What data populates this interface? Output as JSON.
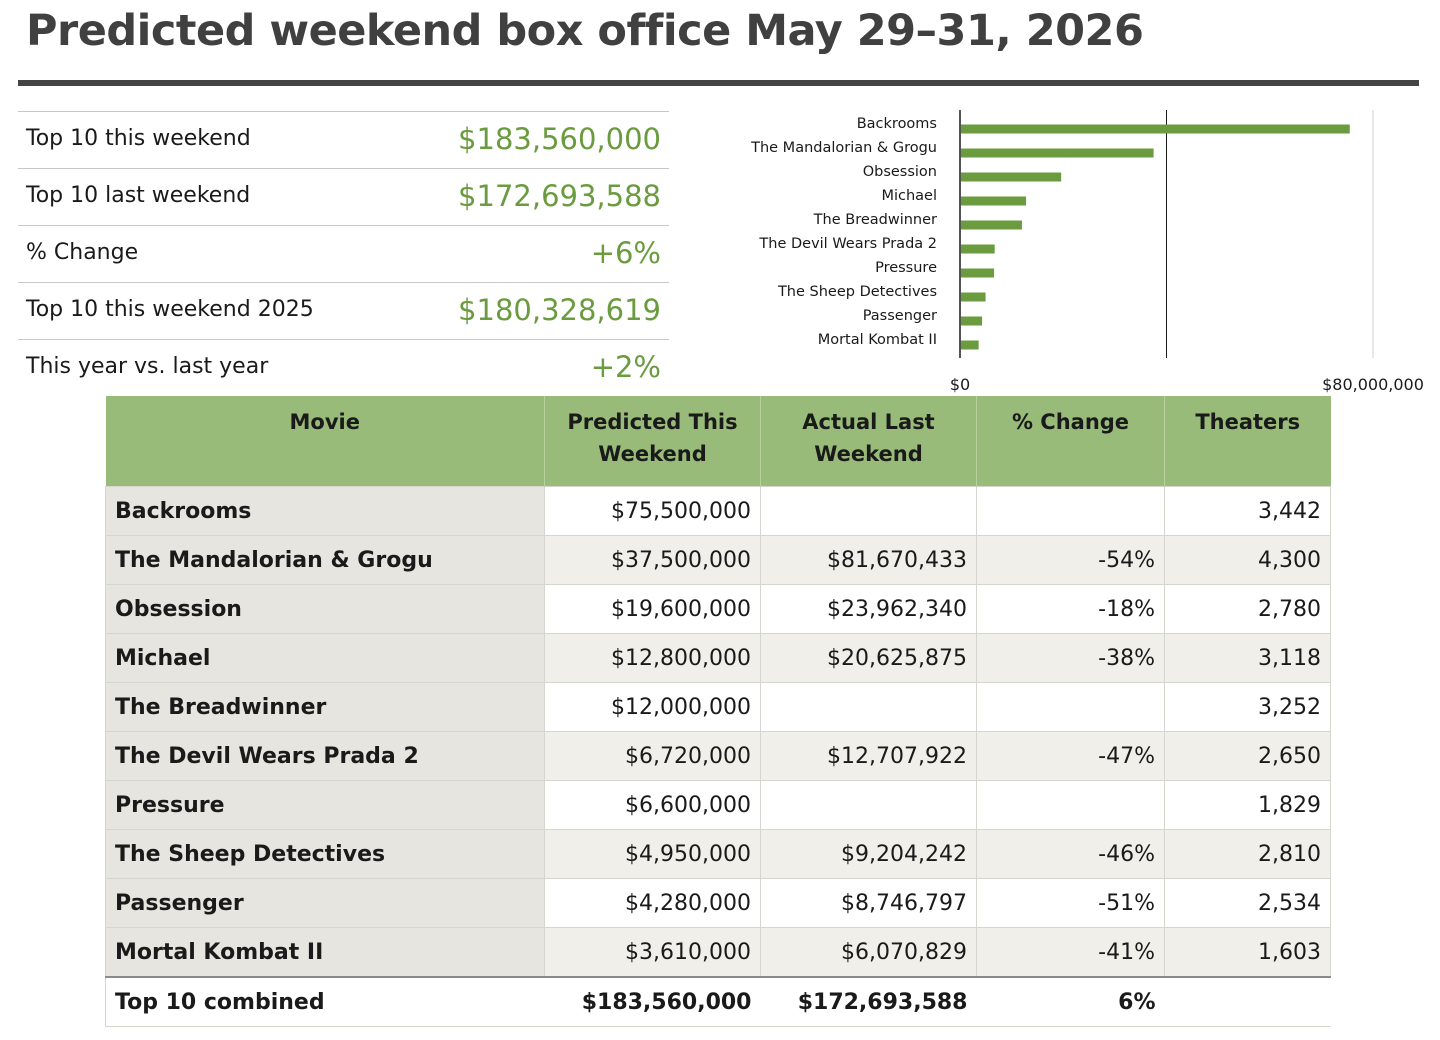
{
  "title": "Predicted weekend box office May 29–31, 2026",
  "summary": [
    {
      "label": "Top 10 this weekend",
      "value": "$183,560,000"
    },
    {
      "label": "Top 10 last weekend",
      "value": "$172,693,588"
    },
    {
      "label": "% Change",
      "value": "+6%"
    },
    {
      "label": "Top 10 this weekend 2025",
      "value": "$180,328,619"
    },
    {
      "label": "This year vs. last year",
      "value": "+2%"
    }
  ],
  "chart_data": {
    "type": "bar",
    "orientation": "horizontal",
    "categories": [
      "Backrooms",
      "The Mandalorian & Grogu",
      "Obsession",
      "Michael",
      "The Breadwinner",
      "The Devil Wears Prada 2",
      "Pressure",
      "The Sheep Detectives",
      "Passenger",
      "Mortal Kombat II"
    ],
    "values": [
      75500000,
      37500000,
      19600000,
      12800000,
      12000000,
      6720000,
      6600000,
      4950000,
      4280000,
      3610000
    ],
    "xlim": [
      0,
      80000000
    ],
    "x_tick_labels": [
      "$0",
      "$80,000,000"
    ],
    "gridlines": [
      40000000,
      80000000
    ],
    "bar_color": "#6b9b3f"
  },
  "table": {
    "headers": [
      "Movie",
      "Predicted This Weekend",
      "Actual Last Weekend",
      "% Change",
      "Theaters"
    ],
    "rows": [
      {
        "movie": "Backrooms",
        "predicted": "$75,500,000",
        "last": "",
        "change": "",
        "theaters": "3,442"
      },
      {
        "movie": "The Mandalorian & Grogu",
        "predicted": "$37,500,000",
        "last": "$81,670,433",
        "change": "-54%",
        "theaters": "4,300"
      },
      {
        "movie": "Obsession",
        "predicted": "$19,600,000",
        "last": "$23,962,340",
        "change": "-18%",
        "theaters": "2,780"
      },
      {
        "movie": "Michael",
        "predicted": "$12,800,000",
        "last": "$20,625,875",
        "change": "-38%",
        "theaters": "3,118"
      },
      {
        "movie": "The Breadwinner",
        "predicted": "$12,000,000",
        "last": "",
        "change": "",
        "theaters": "3,252"
      },
      {
        "movie": "The Devil Wears Prada 2",
        "predicted": "$6,720,000",
        "last": "$12,707,922",
        "change": "-47%",
        "theaters": "2,650"
      },
      {
        "movie": "Pressure",
        "predicted": "$6,600,000",
        "last": "",
        "change": "",
        "theaters": "1,829"
      },
      {
        "movie": "The Sheep Detectives",
        "predicted": "$4,950,000",
        "last": "$9,204,242",
        "change": "-46%",
        "theaters": "2,810"
      },
      {
        "movie": "Passenger",
        "predicted": "$4,280,000",
        "last": "$8,746,797",
        "change": "-51%",
        "theaters": "2,534"
      },
      {
        "movie": "Mortal Kombat II",
        "predicted": "$3,610,000",
        "last": "$6,070,829",
        "change": "-41%",
        "theaters": "1,603"
      }
    ],
    "total": {
      "movie": "Top 10 combined",
      "predicted": "$183,560,000",
      "last": "$172,693,588",
      "change": "6%",
      "theaters": ""
    }
  },
  "colors": {
    "accent_green": "#6b9b3f",
    "header_green": "#98bb79",
    "title_gray": "#404040"
  }
}
